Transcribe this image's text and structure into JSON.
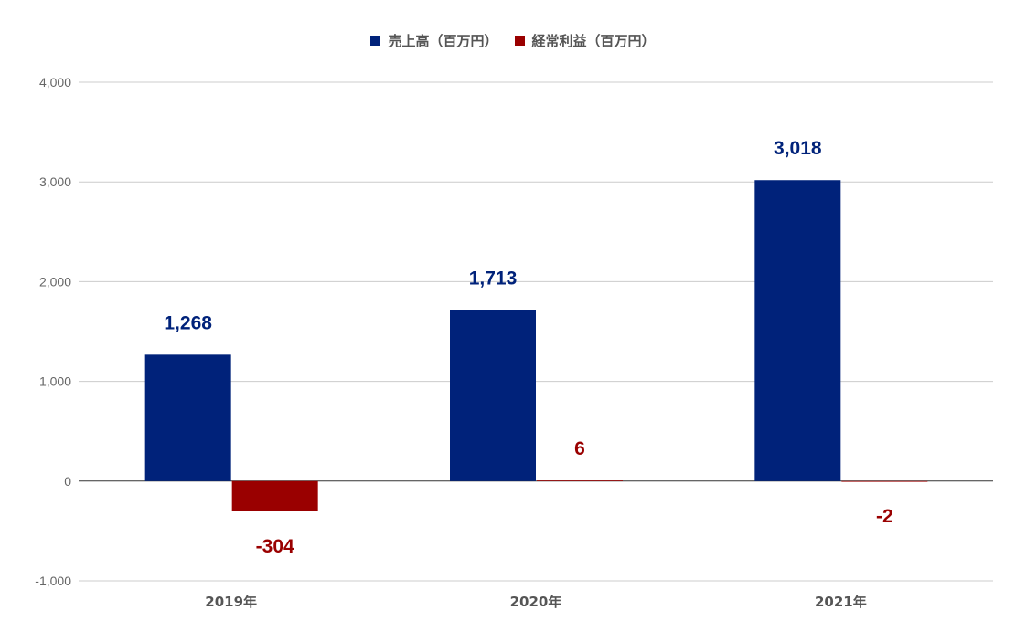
{
  "chart_data": {
    "type": "bar",
    "categories": [
      "2019年",
      "2020年",
      "2021年"
    ],
    "series": [
      {
        "name": "売上高（百万円）",
        "values": [
          1268,
          1713,
          3018
        ],
        "labels": [
          "1,268",
          "1,713",
          "3,018"
        ],
        "color": "#00227a"
      },
      {
        "name": "経常利益（百万円）",
        "values": [
          -304,
          6,
          -2
        ],
        "labels": [
          "-304",
          "6",
          "-2"
        ],
        "color": "#9a0000"
      }
    ],
    "ylim": [
      -1000,
      4000
    ],
    "yticks": [
      4000,
      3000,
      2000,
      1000,
      0,
      -1000
    ],
    "ytick_labels": [
      "4,000",
      "3,000",
      "2,000",
      "1,000",
      "0",
      "-1,000"
    ],
    "grid": true,
    "legend_position": "top-center",
    "title": "",
    "xlabel": "",
    "ylabel": ""
  }
}
